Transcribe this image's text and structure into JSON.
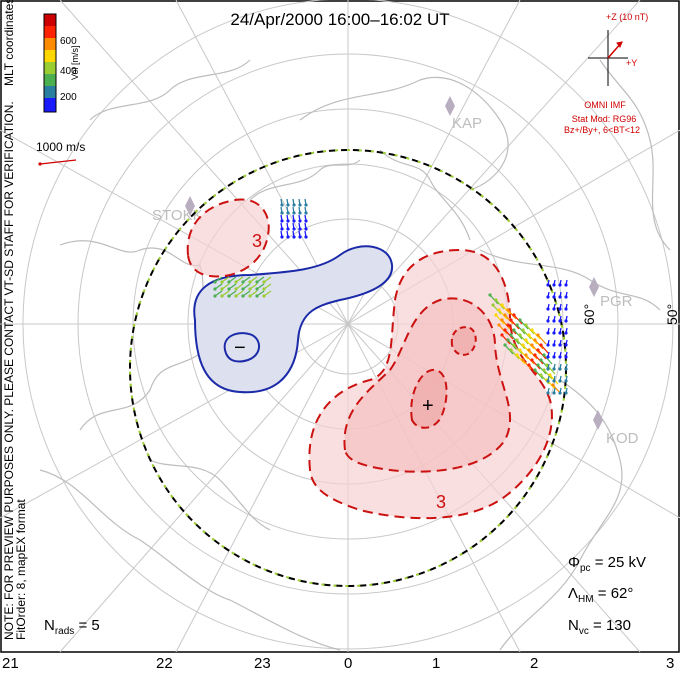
{
  "header": {
    "title": "24/Apr/2000 16:00–16:02 UT"
  },
  "side_notes": {
    "coords": "MLT coordinates",
    "note": "NOTE: FOR PREVIEW PURPOSES ONLY. PLEASE CONTACT VT-SD STAFF FOR VERIFICATION.",
    "fit": "FitOrder: 8, mapEX format"
  },
  "velocity_scale": {
    "label": "Vel [m/s]",
    "ticks": [
      "600",
      "400",
      "200"
    ],
    "colors": [
      "#1a1aff",
      "#2a7fa0",
      "#4caf50",
      "#9acd32",
      "#ffd700",
      "#ff8c00",
      "#ff2200",
      "#cc0000"
    ]
  },
  "reference_vector": {
    "label": "1000 m/s"
  },
  "imf": {
    "z_label": "+Z (10 nT)",
    "y_label": "+Y",
    "source": "OMNI IMF",
    "model": "Stat Mod: RG96",
    "conditions": "Bz+/By+, 6<BT<12"
  },
  "stations": [
    "STOKK",
    "KAP",
    "PGR",
    "KOD"
  ],
  "lat_labels": [
    "60°",
    "50°"
  ],
  "contour_labels": {
    "pos_a": "3",
    "pos_b": "3",
    "neg": "−",
    "pos_center": "+"
  },
  "stats": {
    "phi_pc_sym": "Φ",
    "phi_pc_sub": "pc",
    "phi_pc_val": "= 25 kV",
    "lambda_hm_sym": "Λ",
    "lambda_hm_sub": "HM",
    "lambda_hm_val": "= 62°",
    "n_vc_sym": "N",
    "n_vc_sub": "vc",
    "n_vc_val": "= 130",
    "n_rads_sym": "N",
    "n_rads_sub": "rads",
    "n_rads_val": "= 5"
  },
  "mlt_ticks": [
    "21",
    "22",
    "23",
    "0",
    "1",
    "2",
    "3"
  ]
}
